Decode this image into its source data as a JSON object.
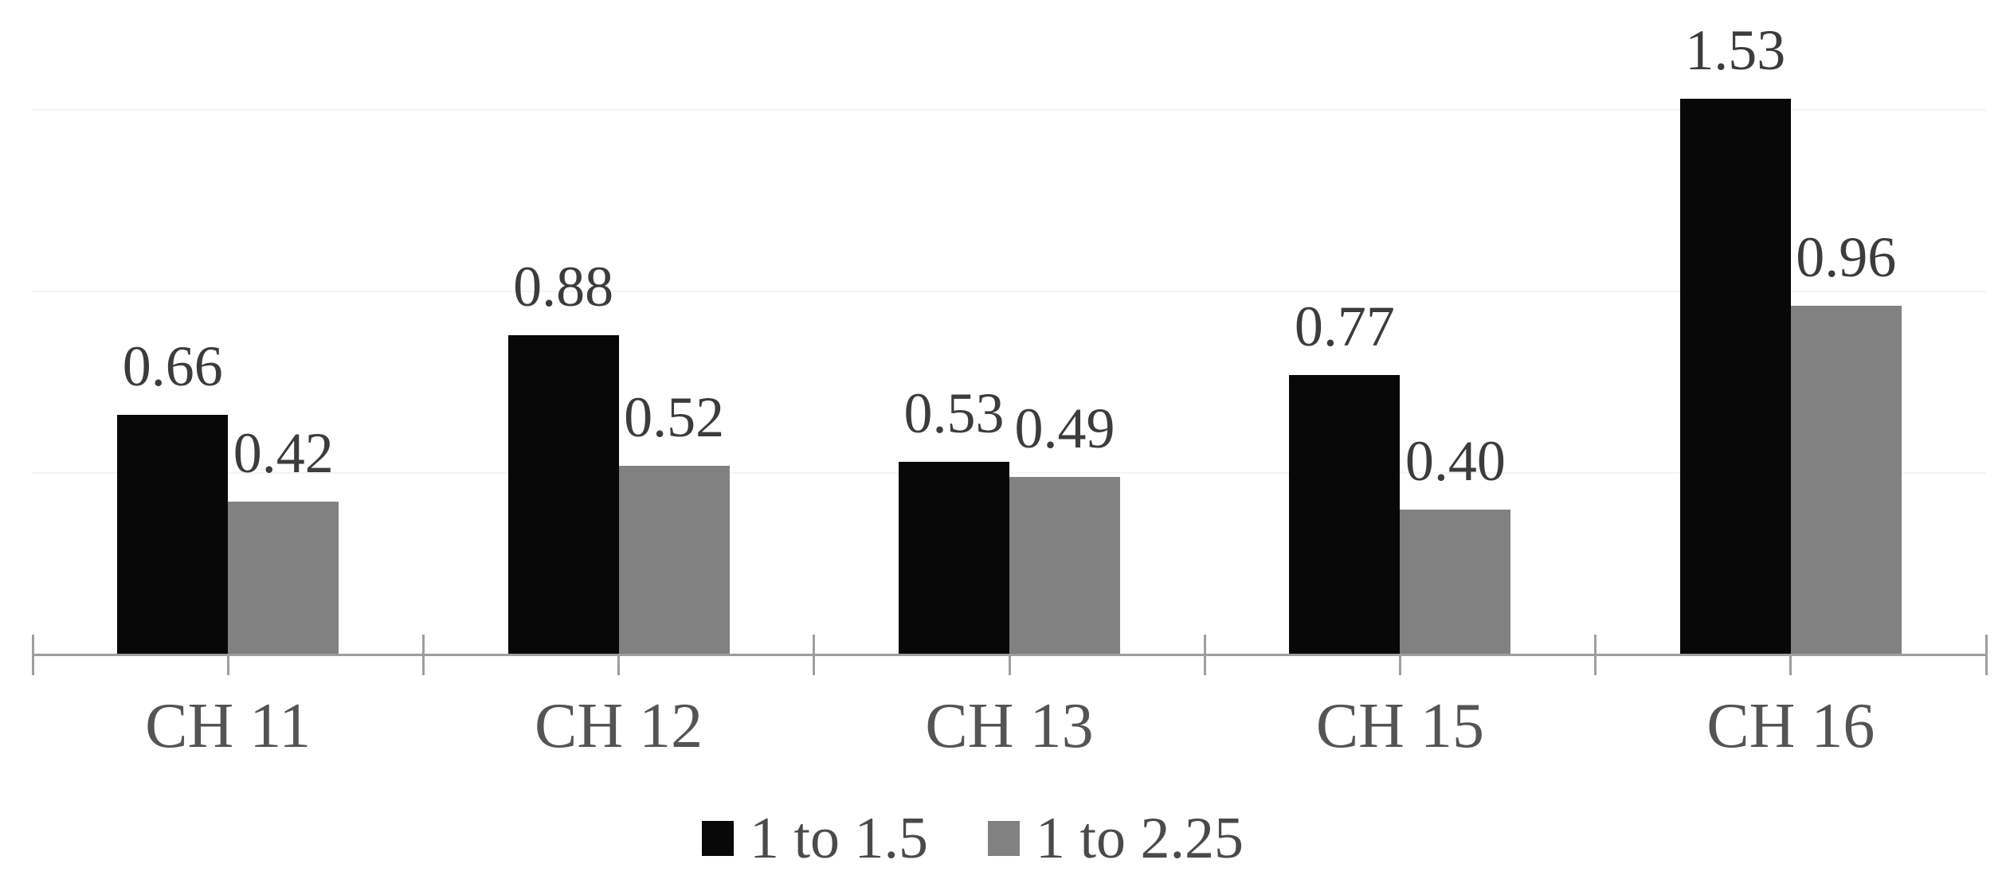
{
  "chart_data": {
    "type": "bar",
    "title": "",
    "xlabel": "",
    "ylabel": "",
    "categories": [
      "CH 11",
      "CH 12",
      "CH 13",
      "CH 15",
      "CH 16"
    ],
    "series": [
      {
        "name": "1 to 1.5",
        "color": "#080808",
        "values": [
          0.66,
          0.88,
          0.53,
          0.77,
          1.53
        ]
      },
      {
        "name": "1 to 2.25",
        "color": "#818181",
        "values": [
          0.42,
          0.52,
          0.49,
          0.4,
          0.96
        ]
      }
    ],
    "data_labels_visible": true,
    "data_label_decimals": 2,
    "ylim": [
      0,
      1.6
    ],
    "gridlines": {
      "visible": true,
      "values": [
        0.5,
        1.0,
        1.5
      ],
      "color": "#f4f4f4"
    },
    "axis": {
      "color": "#9e9e9e",
      "tick_style": "cross at every half category",
      "baseline": true
    },
    "legend": {
      "position": "bottom-center",
      "entries": [
        "1 to 1.5",
        "1 to 2.25"
      ]
    },
    "colors": {
      "background": "#ffffff",
      "data_label_text": "#3c3c3c",
      "category_label_text": "#545454",
      "legend_text": "#4a4a4a"
    }
  }
}
